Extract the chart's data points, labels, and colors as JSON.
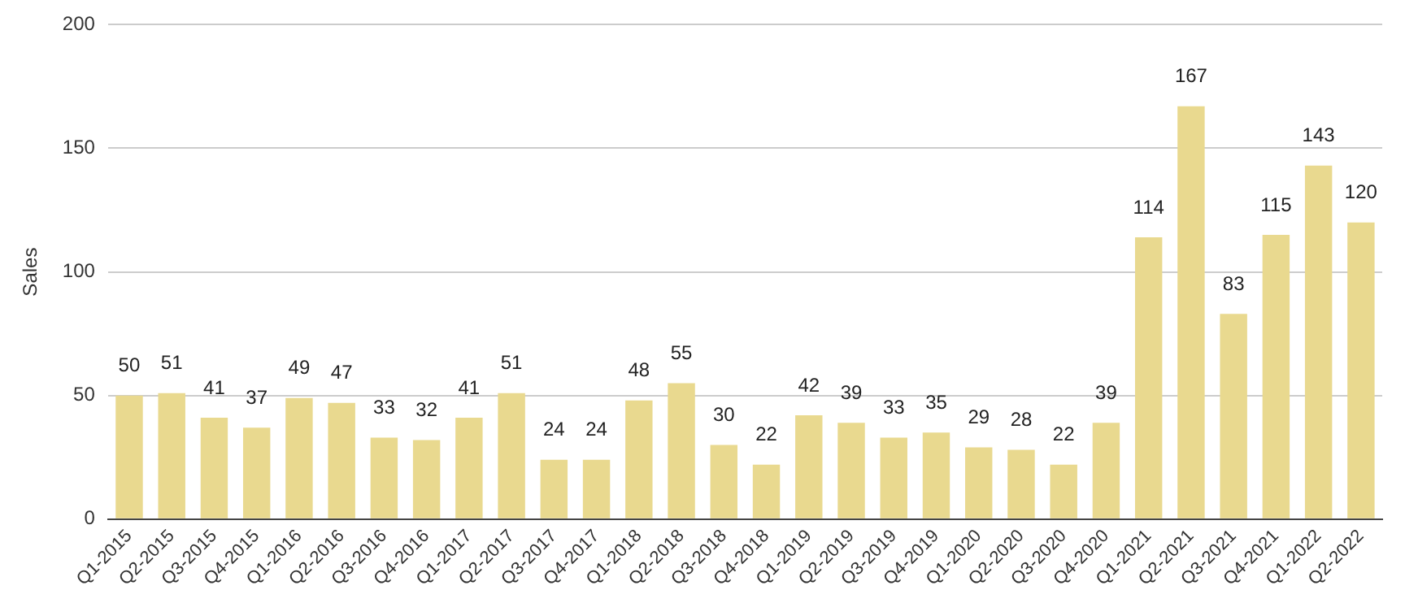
{
  "chart_data": {
    "type": "bar",
    "ylabel": "Sales",
    "categories": [
      "Q1-2015",
      "Q2-2015",
      "Q3-2015",
      "Q4-2015",
      "Q1-2016",
      "Q2-2016",
      "Q3-2016",
      "Q4-2016",
      "Q1-2017",
      "Q2-2017",
      "Q3-2017",
      "Q4-2017",
      "Q1-2018",
      "Q2-2018",
      "Q3-2018",
      "Q4-2018",
      "Q1-2019",
      "Q2-2019",
      "Q3-2019",
      "Q4-2019",
      "Q1-2020",
      "Q2-2020",
      "Q3-2020",
      "Q4-2020",
      "Q1-2021",
      "Q2-2021",
      "Q3-2021",
      "Q4-2021",
      "Q1-2022",
      "Q2-2022"
    ],
    "values": [
      50,
      51,
      41,
      37,
      49,
      47,
      33,
      32,
      41,
      51,
      24,
      24,
      48,
      55,
      30,
      22,
      42,
      39,
      33,
      35,
      29,
      28,
      22,
      39,
      114,
      167,
      83,
      115,
      143,
      120
    ],
    "color": "#e9d98f",
    "ylim": [
      0,
      200
    ],
    "yticks": [
      0,
      50,
      100,
      150,
      200
    ],
    "grid": "y",
    "data_labels": true,
    "legend": false
  }
}
